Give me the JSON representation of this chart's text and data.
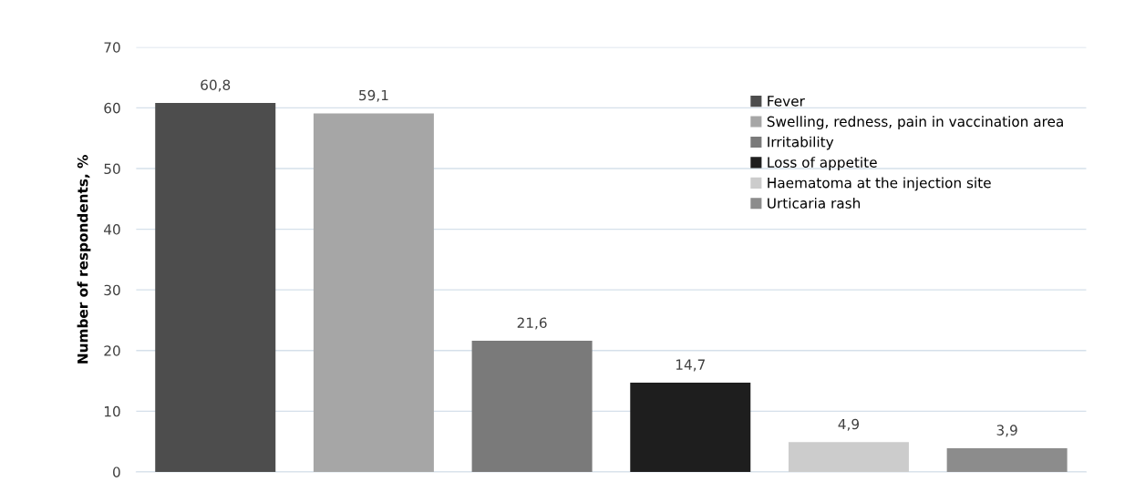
{
  "chart_data": {
    "type": "bar",
    "ylabel": "Number of respondents, %",
    "categories": [
      null,
      null,
      null,
      null,
      null,
      null
    ],
    "series": [
      {
        "name": "Fever",
        "color": "#4d4d4d",
        "values": [
          60.8,
          null,
          null,
          null,
          null,
          null
        ],
        "value_labels": [
          "60,8",
          null,
          null,
          null,
          null,
          null
        ]
      },
      {
        "name": "Swelling, redness, pain in vaccination area",
        "color": "#a6a6a6",
        "values": [
          null,
          59.1,
          null,
          null,
          null,
          null
        ],
        "value_labels": [
          null,
          "59,1",
          null,
          null,
          null,
          null
        ]
      },
      {
        "name": "Irritability",
        "color": "#7a7a7a",
        "values": [
          null,
          null,
          21.6,
          null,
          null,
          null
        ],
        "value_labels": [
          null,
          null,
          "21,6",
          null,
          null,
          null
        ]
      },
      {
        "name": "Loss of appetite",
        "color": "#1e1e1e",
        "values": [
          null,
          null,
          null,
          14.7,
          null,
          null
        ],
        "value_labels": [
          null,
          null,
          null,
          "14,7",
          null,
          null
        ]
      },
      {
        "name": "Haematoma at the injection site",
        "color": "#cccccc",
        "values": [
          null,
          null,
          null,
          null,
          4.9,
          null
        ],
        "value_labels": [
          null,
          null,
          null,
          null,
          "4,9",
          null
        ]
      },
      {
        "name": "Urticaria rash",
        "color": "#8c8c8c",
        "values": [
          null,
          null,
          null,
          null,
          null,
          3.9
        ],
        "value_labels": [
          null,
          null,
          null,
          null,
          null,
          "3,9"
        ]
      }
    ],
    "ylim": [
      0,
      70
    ],
    "yticks": [
      0,
      10,
      20,
      30,
      40,
      50,
      60,
      70
    ],
    "grid": "y",
    "legend": "right"
  }
}
